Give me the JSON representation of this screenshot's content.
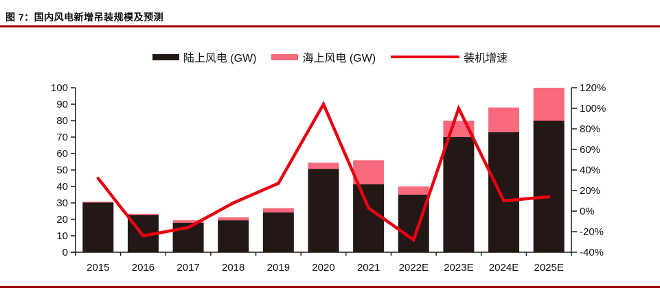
{
  "title": "图 7：国内风电新增吊装规模及预测",
  "rules": {
    "color": "#A00000"
  },
  "legend": {
    "items": [
      {
        "label": "陆上风电 (GW)"
      },
      {
        "label": "海上风电 (GW)"
      },
      {
        "label": "装机增速"
      }
    ]
  },
  "chart_data": {
    "type": "combo: stacked bar (left axis, GW) + line (right axis, %)",
    "title": "国内风电新增吊装规模及预测",
    "categories": [
      "2015",
      "2016",
      "2017",
      "2018",
      "2019",
      "2020",
      "2021",
      "2022E",
      "2023E",
      "2024E",
      "2025E"
    ],
    "series": [
      {
        "name": "陆上风电 (GW)",
        "type": "bar",
        "stack": "gw",
        "axis": "left",
        "color": "#231815",
        "values": [
          30.2,
          22.6,
          18,
          19.5,
          24.2,
          50.7,
          41.4,
          35,
          70,
          73,
          80
        ]
      },
      {
        "name": "海上风电 (GW)",
        "type": "bar",
        "stack": "gw",
        "axis": "left",
        "color": "#F8697D",
        "values": [
          0.5,
          0.8,
          1.5,
          1.7,
          2.6,
          3.7,
          14.5,
          5,
          10,
          15,
          20
        ]
      },
      {
        "name": "装机增速",
        "type": "line",
        "axis": "right",
        "color": "#E60012",
        "unit": "%",
        "values": [
          32,
          -24,
          -16,
          8,
          27,
          104,
          3,
          -28,
          100,
          10,
          14
        ]
      }
    ],
    "left_axis": {
      "min": 0,
      "max": 100,
      "step": 10,
      "tick_labels": [
        "0",
        "10",
        "20",
        "30",
        "40",
        "50",
        "60",
        "70",
        "80",
        "90",
        "100"
      ]
    },
    "right_axis": {
      "min": -40,
      "max": 120,
      "step": 20,
      "tick_labels": [
        "-40%",
        "-20%",
        "0%",
        "20%",
        "40%",
        "60%",
        "80%",
        "100%",
        "120%"
      ]
    },
    "grid": false,
    "legend_position": "top",
    "axis_color": "#1A1A1A",
    "label_color": "#111111"
  }
}
